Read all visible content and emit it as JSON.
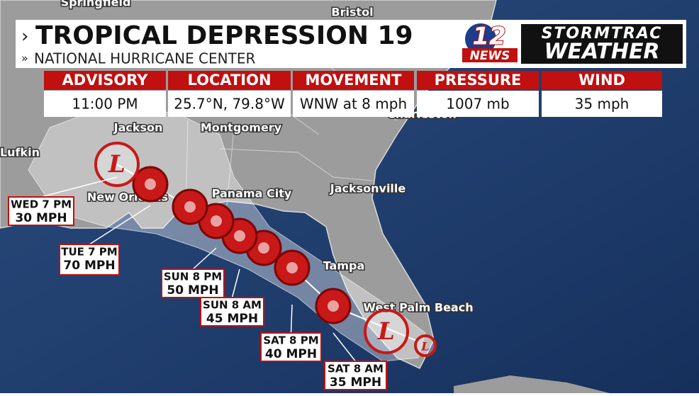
{
  "header": {
    "title": "TROPICAL DEPRESSION 19",
    "subtitle": "NATIONAL HURRICANE CENTER",
    "logo_number": "12",
    "logo_news": "NEWS",
    "brand_top": "STORMTRAC",
    "brand_bottom": "WEATHER"
  },
  "advisory": [
    {
      "label": "ADVISORY",
      "value": "11:00 PM"
    },
    {
      "label": "LOCATION",
      "value": "25.7°N, 79.8°W"
    },
    {
      "label": "MOVEMENT",
      "value": "WNW at 8 mph"
    },
    {
      "label": "PRESSURE",
      "value": "1007 mb"
    },
    {
      "label": "WIND",
      "value": "35 mph"
    }
  ],
  "cities": [
    "Springfield",
    "Bristol",
    "Charleston",
    "Jackson",
    "Montgomery",
    "Lufkin",
    "New Orleans",
    "Panama City",
    "Jacksonville",
    "Tampa",
    "West Palm Beach"
  ],
  "low_symbol": "L",
  "forecast_points": [
    {
      "time": "SAT 8 AM",
      "wind": "35 MPH"
    },
    {
      "time": "SAT 8 PM",
      "wind": "40 MPH"
    },
    {
      "time": "SUN 8 AM",
      "wind": "45 MPH"
    },
    {
      "time": "SUN 8 PM",
      "wind": "50 MPH"
    },
    {
      "time": "TUE 7 PM",
      "wind": "70 MPH"
    },
    {
      "time": "WED 7 PM",
      "wind": "30 MPH"
    }
  ]
}
